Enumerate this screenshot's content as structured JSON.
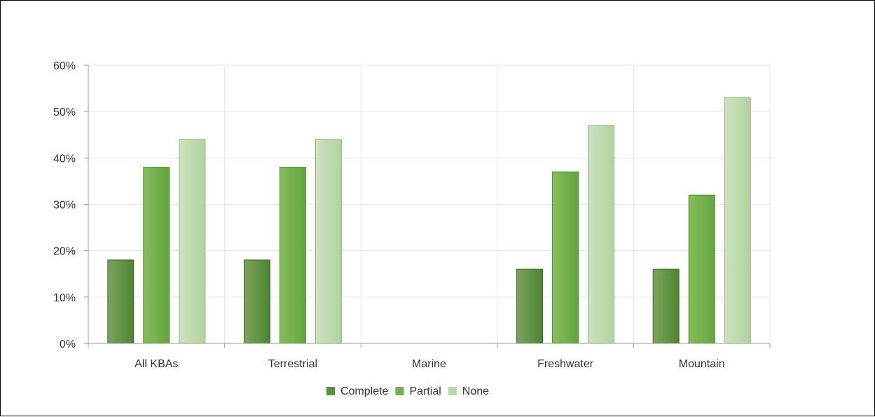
{
  "chart_data": {
    "type": "bar",
    "categories": [
      "All KBAs",
      "Terrestrial",
      "Marine",
      "Freshwater",
      "Mountain"
    ],
    "series": [
      {
        "name": "Complete",
        "values": [
          18,
          18,
          0,
          16,
          16
        ],
        "color": "#5a8f3c"
      },
      {
        "name": "Partial",
        "values": [
          38,
          38,
          0,
          37,
          32
        ],
        "color": "#72b04a"
      },
      {
        "name": "None",
        "values": [
          44,
          44,
          0,
          47,
          53
        ],
        "color": "#b8d6a8"
      }
    ],
    "ylim": [
      0,
      60
    ],
    "yticks": [
      0,
      10,
      20,
      30,
      40,
      50,
      60
    ],
    "ytick_labels": [
      "0%",
      "10%",
      "20%",
      "30%",
      "40%",
      "50%",
      "60%"
    ],
    "grid": true,
    "legend_position": "bottom-center"
  }
}
